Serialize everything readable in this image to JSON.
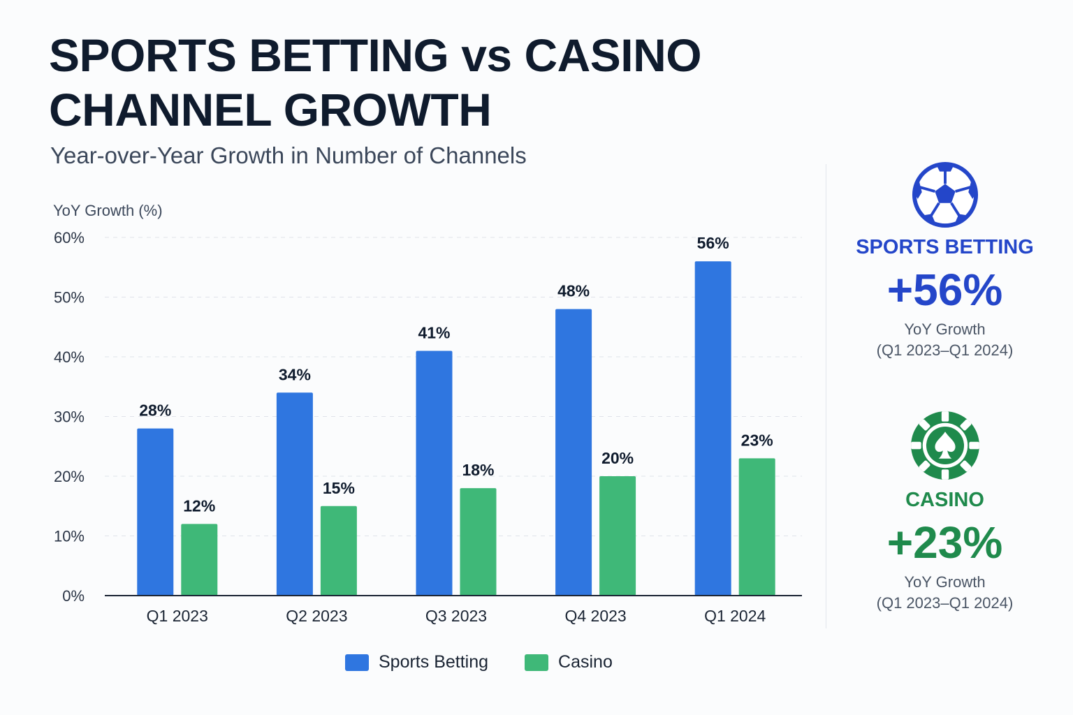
{
  "header": {
    "title_line1": "SPORTS BETTING vs CASINO",
    "title_line2": "CHANNEL GROWTH",
    "subtitle": "Year-over-Year Growth in Number of Channels"
  },
  "chart_data": {
    "type": "bar",
    "ylabel": "YoY Growth (%)",
    "xlabel": "",
    "ylim": [
      0,
      60
    ],
    "yticks": [
      "0%",
      "10%",
      "20%",
      "30%",
      "40%",
      "50%",
      "60%"
    ],
    "grid": true,
    "categories": [
      "Q1 2023",
      "Q2 2023",
      "Q3 2023",
      "Q4 2023",
      "Q1 2024"
    ],
    "series": [
      {
        "name": "Sports Betting",
        "color": "#2f76e0",
        "values": [
          28,
          34,
          41,
          48,
          56
        ],
        "labels": [
          "28%",
          "34%",
          "41%",
          "48%",
          "56%"
        ]
      },
      {
        "name": "Casino",
        "color": "#3fb878",
        "values": [
          12,
          15,
          18,
          20,
          23
        ],
        "labels": [
          "12%",
          "15%",
          "18%",
          "20%",
          "23%"
        ]
      }
    ],
    "legend": "bottom-center"
  },
  "sidebar": {
    "sports": {
      "icon": "soccer-ball-icon",
      "label": "SPORTS BETTING",
      "value": "+56%",
      "sub1": "YoY Growth",
      "sub2": "(Q1 2023–Q1 2024)",
      "color": "#2446c9"
    },
    "casino": {
      "icon": "poker-chip-spade-icon",
      "label": "CASINO",
      "value": "+23%",
      "sub1": "YoY Growth",
      "sub2": "(Q1 2023–Q1 2024)",
      "color": "#1f8a4c"
    }
  },
  "legend": {
    "sports": "Sports Betting",
    "casino": "Casino"
  }
}
